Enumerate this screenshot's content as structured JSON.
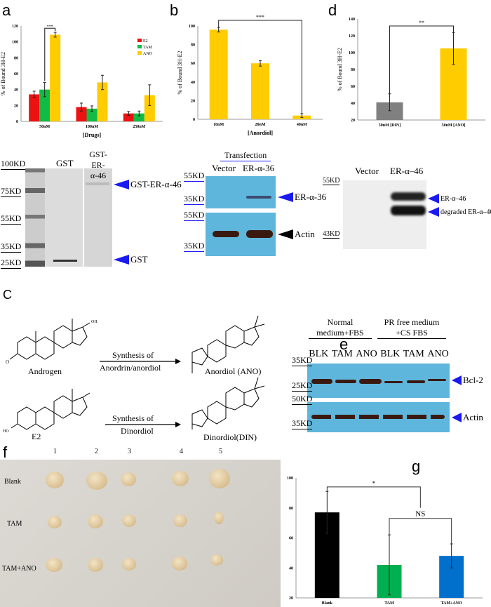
{
  "panels": {
    "a": "a",
    "b": "b",
    "d": "d",
    "c": "C",
    "e": "e",
    "f": "f",
    "g": "g"
  },
  "chart_data": [
    {
      "id": "a",
      "type": "bar",
      "title": "",
      "xlabel": "[Drugs]",
      "ylabel": "% of Bound 3H-E2",
      "ylim": [
        0,
        120
      ],
      "yticks": [
        0,
        20,
        40,
        60,
        80,
        100,
        120
      ],
      "categories": [
        "50nM",
        "100nM",
        "250nM"
      ],
      "series": [
        {
          "name": "E2",
          "color": "#ee1111",
          "values": [
            34,
            18,
            10
          ],
          "errors": [
            4,
            5,
            2.5
          ]
        },
        {
          "name": "TAM",
          "color": "#11bb44",
          "values": [
            40,
            16,
            10
          ],
          "errors": [
            9,
            3.5,
            3
          ]
        },
        {
          "name": "ANO",
          "color": "#ffcc00",
          "values": [
            109,
            49,
            33
          ],
          "errors": [
            3,
            9,
            13
          ]
        }
      ],
      "legend": "top-right",
      "annotations": [
        {
          "text": "***",
          "between": [
            "50nM TAM",
            "50nM ANO"
          ]
        }
      ]
    },
    {
      "id": "b",
      "type": "bar",
      "xlabel": "[Anordiol]",
      "ylabel": "% of Bound 3H-E2",
      "ylim": [
        0,
        100
      ],
      "yticks": [
        0,
        20,
        40,
        60,
        80,
        100
      ],
      "categories": [
        "10nM",
        "20nM",
        "40nM"
      ],
      "series": [
        {
          "name": "ANO",
          "color": "#ffcc00",
          "values": [
            96,
            60,
            4
          ],
          "errors": [
            2.5,
            3,
            2
          ]
        }
      ],
      "annotations": [
        {
          "text": "***",
          "between": [
            "10nM",
            "40nM"
          ]
        }
      ]
    },
    {
      "id": "d",
      "type": "bar",
      "xlabel": "",
      "ylabel": "% of Bound 3H-E2",
      "ylim": [
        20,
        140
      ],
      "yticks": [
        20,
        40,
        60,
        80,
        100,
        120,
        140
      ],
      "categories": [
        "50nM [DIN]",
        "50nM [ANO]"
      ],
      "series": [
        {
          "name": "value",
          "colors": [
            "#808080",
            "#ffcc00"
          ],
          "values": [
            41,
            105
          ],
          "errors": [
            10,
            19
          ]
        }
      ],
      "annotations": [
        {
          "text": "**",
          "between": [
            "50nM [DIN]",
            "50nM [ANO]"
          ]
        }
      ]
    },
    {
      "id": "g",
      "type": "bar",
      "xlabel": "",
      "ylabel": "Tumor Mass (mg)",
      "ylim": [
        20,
        100
      ],
      "yticks": [
        20,
        40,
        60,
        80,
        100
      ],
      "categories": [
        "Blank",
        "TAM",
        "TAM+ANO"
      ],
      "series": [
        {
          "name": "value",
          "colors": [
            "#000000",
            "#00b050",
            "#0070cc"
          ],
          "values": [
            77,
            42,
            48
          ],
          "errors": [
            14,
            20,
            8
          ]
        }
      ],
      "annotations": [
        {
          "text": "*",
          "between": [
            "Blank",
            "TAM/TAM+ANO"
          ]
        },
        {
          "text": "NS",
          "between": [
            "TAM",
            "TAM+ANO"
          ]
        }
      ]
    }
  ],
  "gst_blot": {
    "markers": [
      "100KD",
      "75KD",
      "55KD",
      "35KD",
      "25KD"
    ],
    "lanes": [
      "GST",
      "GST-ER-α-46"
    ],
    "arrows": [
      "GST-ER-α-46",
      "GST"
    ]
  },
  "transfection_blot": {
    "header": "Transfection",
    "lanes": [
      "Vector",
      "ER-α-36"
    ],
    "markers": [
      "55KD",
      "35KD",
      "55KD",
      "35KD"
    ],
    "arrows": [
      "ER-α-36",
      "Actin"
    ]
  },
  "er46_blot": {
    "lanes": [
      "Vector",
      "ER-α–46"
    ],
    "markers": [
      "55KD",
      "43KD"
    ],
    "arrows": [
      "ER-α–46",
      "degraded ER-α–46"
    ]
  },
  "structures": {
    "androgen": "Androgen",
    "anordiol": "Anordiol (ANO)",
    "e2": "E2",
    "dinordiol": "Dinordiol(DIN)",
    "arrow1": [
      "Synthesis of",
      "Anordrin/anordiol"
    ],
    "arrow2": [
      "Synthesis of",
      "Dinordiol"
    ],
    "oh": "OH",
    "ho": "HO",
    "o": "O"
  },
  "bcl2_blot": {
    "groups": [
      "Normal medium+FBS",
      "PR free medium +CS FBS"
    ],
    "lanes": [
      "BLK",
      "TAM",
      "ANO",
      "BLK",
      "TAM",
      "ANO"
    ],
    "markers": [
      "35KD",
      "25KD",
      "50KD",
      "35KD"
    ],
    "arrows": [
      "Bcl-2",
      "Actin"
    ]
  },
  "tumor_photo": {
    "columns": [
      "1",
      "2",
      "3",
      "4",
      "5"
    ],
    "rows": [
      "Blank",
      "TAM",
      "TAM+ANO"
    ]
  }
}
